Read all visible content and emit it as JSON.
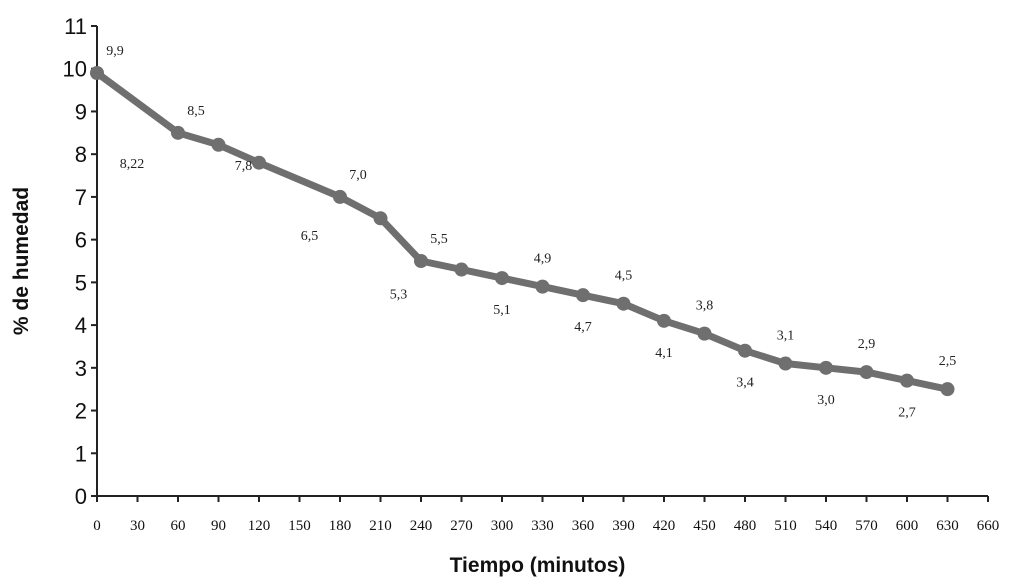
{
  "chart_data": {
    "type": "line",
    "xlabel": "Tiempo (minutos)",
    "ylabel": "% de humedad",
    "xlim": [
      0,
      660
    ],
    "ylim": [
      0,
      11
    ],
    "x_ticks": [
      0,
      30,
      60,
      90,
      120,
      150,
      180,
      210,
      240,
      270,
      300,
      330,
      360,
      390,
      420,
      450,
      480,
      510,
      540,
      570,
      600,
      630,
      660
    ],
    "x_tick_labels": [
      "0",
      "30",
      "60",
      "90",
      "120",
      "150",
      "180",
      "210",
      "240",
      "270",
      "300",
      "330",
      "360",
      "390",
      "420",
      "450",
      "480",
      "510",
      "540",
      "570",
      "600",
      "630",
      "660"
    ],
    "y_ticks": [
      0,
      1,
      2,
      3,
      4,
      5,
      6,
      7,
      8,
      9,
      10,
      11
    ],
    "y_tick_labels": [
      "0",
      "1",
      "2",
      "3",
      "4",
      "5",
      "6",
      "7",
      "8",
      "9",
      "10",
      "11"
    ],
    "series_color": "#6f6f6f",
    "series": [
      {
        "x": [
          0,
          60,
          90,
          120,
          180,
          210,
          240,
          270,
          300,
          330,
          360,
          390,
          420,
          450,
          480,
          510,
          540,
          570,
          600,
          630
        ],
        "y": [
          9.9,
          8.5,
          8.22,
          7.8,
          7.0,
          6.5,
          5.5,
          5.3,
          5.1,
          4.9,
          4.7,
          4.5,
          4.1,
          3.8,
          3.4,
          3.1,
          3.0,
          2.9,
          2.7,
          2.5
        ]
      }
    ],
    "data_labels": [
      {
        "text": "9,9",
        "x": 0,
        "y": 9.9,
        "pos": "above-right"
      },
      {
        "text": "8,22",
        "x": 0,
        "y": 9.9,
        "pos": "below-far"
      },
      {
        "text": "8,5",
        "x": 60,
        "y": 8.5,
        "pos": "above-right"
      },
      {
        "text": "7,8",
        "x": 90,
        "y": 8.22,
        "pos": "below-far"
      },
      {
        "text": "6,5",
        "x": 150,
        "y": 7.4,
        "pos": "below-far"
      },
      {
        "text": "7,0",
        "x": 180,
        "y": 7.0,
        "pos": "above-right"
      },
      {
        "text": "5,5",
        "x": 240,
        "y": 5.5,
        "pos": "above-right"
      },
      {
        "text": "5,3",
        "x": 210,
        "y": 6.5,
        "pos": "below-far2"
      },
      {
        "text": "5,1",
        "x": 300,
        "y": 5.1,
        "pos": "below"
      },
      {
        "text": "4,9",
        "x": 330,
        "y": 4.9,
        "pos": "above"
      },
      {
        "text": "4,7",
        "x": 360,
        "y": 4.7,
        "pos": "below"
      },
      {
        "text": "4,5",
        "x": 390,
        "y": 4.5,
        "pos": "above"
      },
      {
        "text": "4,1",
        "x": 420,
        "y": 4.1,
        "pos": "below"
      },
      {
        "text": "3,8",
        "x": 450,
        "y": 3.8,
        "pos": "above"
      },
      {
        "text": "3,4",
        "x": 480,
        "y": 3.4,
        "pos": "below"
      },
      {
        "text": "3,1",
        "x": 510,
        "y": 3.1,
        "pos": "above"
      },
      {
        "text": "3,0",
        "x": 540,
        "y": 3.0,
        "pos": "below"
      },
      {
        "text": "2,9",
        "x": 570,
        "y": 2.9,
        "pos": "above"
      },
      {
        "text": "2,7",
        "x": 600,
        "y": 2.7,
        "pos": "below"
      },
      {
        "text": "2,5",
        "x": 630,
        "y": 2.5,
        "pos": "above"
      }
    ]
  }
}
